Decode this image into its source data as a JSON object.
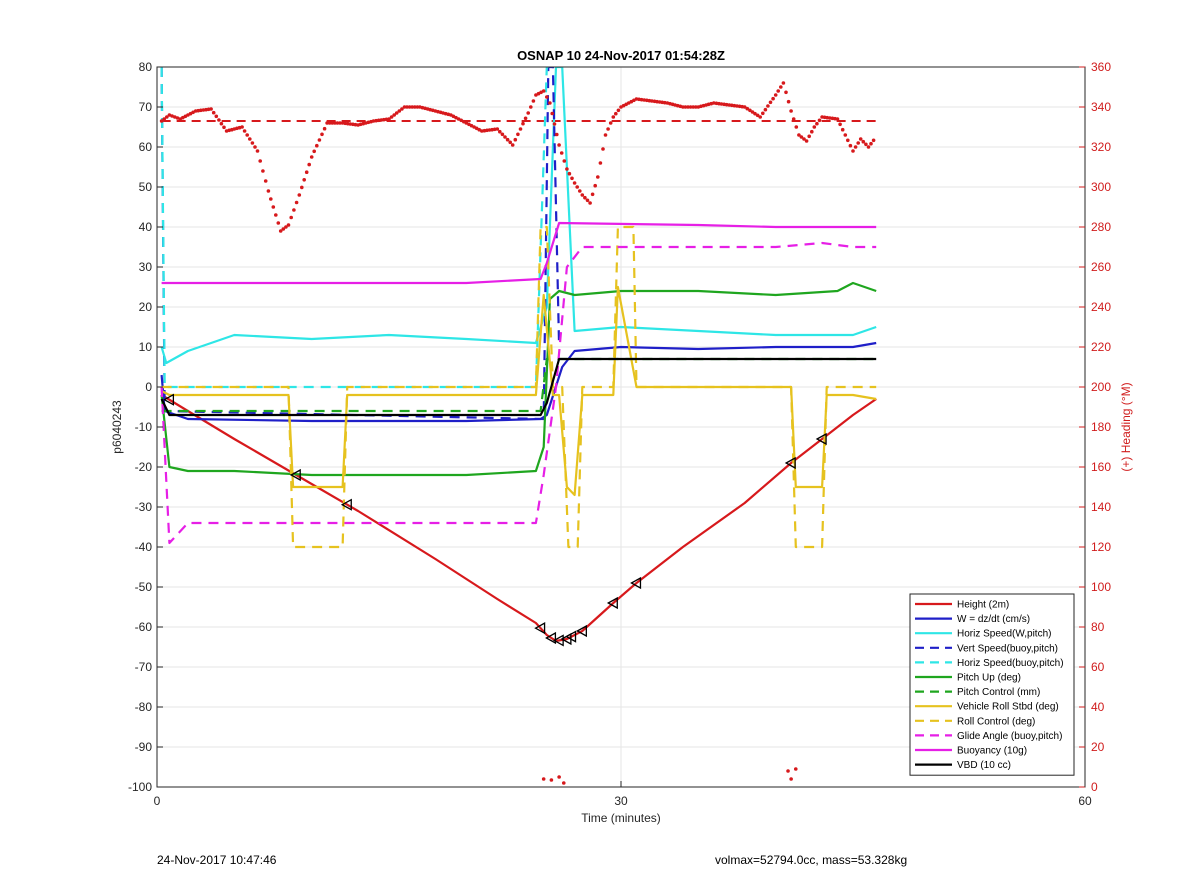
{
  "chart_data": {
    "type": "line",
    "title": "OSNAP 10 24-Nov-2017 01:54:28Z",
    "xlabel": "Time (minutes)",
    "ylabel": "p6040243",
    "y2label": "(+) Heading (°M)",
    "xlim": [
      0,
      60
    ],
    "ylim": [
      -100,
      80
    ],
    "y2lim": [
      0,
      360
    ],
    "x_ticks": [
      "0",
      "30",
      "60"
    ],
    "y_ticks": [
      "80",
      "70",
      "60",
      "50",
      "40",
      "30",
      "20",
      "10",
      "0",
      "-10",
      "-20",
      "-30",
      "-40",
      "-50",
      "-60",
      "-70",
      "-80",
      "-90",
      "-100"
    ],
    "y2_ticks": [
      "360",
      "340",
      "320",
      "300",
      "280",
      "260",
      "240",
      "220",
      "200",
      "180",
      "160",
      "140",
      "120",
      "100",
      "80",
      "60",
      "40",
      "20",
      "0"
    ],
    "grid": true,
    "legend_position": "bottom-right",
    "series": [
      {
        "name": "Height (2m)",
        "color": "#d7191c",
        "style": "solid",
        "x": [
          0.3,
          2,
          5,
          9,
          13,
          18,
          22,
          24.5,
          25.2,
          25.8,
          26.5,
          27.5,
          29.5,
          31,
          34,
          38,
          41,
          43,
          45,
          46.5
        ],
        "y": [
          -2,
          -6,
          -13,
          -22,
          -31,
          -43,
          -53,
          -59,
          -62,
          -63.5,
          -63,
          -61,
          -54,
          -49,
          -40,
          -29,
          -19,
          -13,
          -7,
          -3
        ]
      },
      {
        "name": "W = dz/dt (cm/s)",
        "color": "#1f1fc8",
        "style": "solid",
        "x": [
          0.3,
          0.5,
          2,
          10,
          20,
          24.8,
          25.2,
          26.2,
          27,
          30,
          35,
          40,
          45,
          46.5
        ],
        "y": [
          3,
          -6,
          -8,
          -8.5,
          -8.5,
          -8,
          -7,
          5,
          9,
          10,
          9.5,
          10,
          10,
          11
        ]
      },
      {
        "name": "Horiz Speed(W,pitch)",
        "color": "#2ee6e6",
        "style": "solid",
        "x": [
          0.3,
          0.6,
          2,
          5,
          10,
          15,
          20,
          24.5,
          25.2,
          25.8,
          26.2,
          27,
          30,
          35,
          40,
          45,
          46.5
        ],
        "y": [
          10,
          6,
          9,
          13,
          12,
          13,
          12,
          11,
          20,
          80,
          80,
          14,
          15,
          14,
          13,
          13,
          15
        ]
      },
      {
        "name": "Vert Speed(buoy,pitch)",
        "color": "#1f1fc8",
        "style": "dashed",
        "x": [
          0.3,
          0.5,
          25,
          25.3,
          25.6,
          26
        ],
        "y": [
          80,
          -6,
          -8,
          80,
          80,
          10
        ]
      },
      {
        "name": "Horiz Speed(buoy,pitch)",
        "color": "#2ee6e6",
        "style": "dashed",
        "x": [
          0.3,
          0.5,
          1,
          24.5,
          25.2,
          25.5
        ],
        "y": [
          80,
          0,
          0,
          0,
          80,
          80
        ]
      },
      {
        "name": "Pitch Up (deg)",
        "color": "#1fa61f",
        "style": "solid",
        "x": [
          0.3,
          0.8,
          2,
          5,
          10,
          20,
          24.5,
          25,
          25.4,
          26,
          27,
          30,
          35,
          40,
          44,
          45,
          46.5
        ],
        "y": [
          -2,
          -20,
          -21,
          -21,
          -22,
          -22,
          -21,
          -15,
          22,
          24,
          23,
          24,
          24,
          23,
          24,
          26,
          24
        ]
      },
      {
        "name": "Pitch Control (mm)",
        "color": "#1fa61f",
        "style": "dashed",
        "x": [
          0.3,
          1,
          24.8,
          25.2,
          46.5
        ],
        "y": [
          -6,
          -6,
          -6,
          7,
          7
        ]
      },
      {
        "name": "Vehicle Roll Stbd (deg)",
        "color": "#e6c21f",
        "style": "solid",
        "x": [
          0.3,
          0.8,
          8.5,
          8.8,
          12,
          12.3,
          20,
          24.5,
          25,
          25.6,
          26,
          26.5,
          27,
          27.5,
          28,
          29.5,
          29.8,
          31,
          40,
          41,
          41.3,
          43,
          43.3,
          45,
          46.5
        ],
        "y": [
          -1,
          -2,
          -2,
          -25,
          -25,
          -2,
          -2,
          -2,
          23,
          -2,
          -2,
          -25,
          -27,
          -2,
          -2,
          -2,
          25,
          0,
          0,
          0,
          -25,
          -25,
          -2,
          -2,
          -3
        ]
      },
      {
        "name": "Roll Control (deg)",
        "color": "#e6c21f",
        "style": "dashed",
        "x": [
          0.3,
          8.5,
          8.8,
          12,
          12.3,
          24.5,
          24.8,
          25.2,
          25.6,
          26.2,
          26.6,
          27.2,
          27.5,
          29.5,
          29.8,
          30.8,
          31,
          41,
          41.3,
          43,
          43.3,
          46.5
        ],
        "y": [
          0,
          0,
          -40,
          -40,
          0,
          0,
          40,
          40,
          0,
          0,
          -40,
          -40,
          0,
          0,
          40,
          40,
          0,
          0,
          -40,
          -40,
          0,
          0
        ]
      },
      {
        "name": "Glide Angle (buoy,pitch)",
        "color": "#e61fe6",
        "style": "dashed",
        "x": [
          0.3,
          0.8,
          2,
          5,
          10,
          15,
          20,
          24.5,
          25,
          25.8,
          26.5,
          27.5,
          30,
          35,
          40,
          43,
          45,
          46.5
        ],
        "y": [
          0,
          -39,
          -34,
          -34,
          -34,
          -34,
          -34,
          -34,
          -22,
          0,
          30,
          35,
          35,
          35,
          35,
          36,
          35,
          35
        ]
      },
      {
        "name": "Buoyancy (10g)",
        "color": "#e61fe6",
        "style": "solid",
        "x": [
          0.3,
          13,
          20,
          24.8,
          25.2,
          26,
          35,
          40,
          46.5
        ],
        "y": [
          26,
          26,
          26,
          27,
          31,
          41,
          40.5,
          40,
          40
        ]
      },
      {
        "name": "VBD (10 cc)",
        "color": "#000000",
        "style": "solid",
        "x": [
          0.3,
          0.8,
          24.8,
          25.2,
          26,
          46.5
        ],
        "y": [
          -3,
          -7,
          -7,
          -4,
          7,
          7
        ]
      }
    ],
    "heading_series": {
      "name": "(+) Heading (°M)",
      "color": "#d7191c",
      "style": "dotted",
      "axis": "right",
      "x": [
        0.3,
        0.8,
        1.5,
        2.5,
        3.5,
        4.5,
        5.5,
        6.5,
        7.2,
        8,
        8.5,
        9.2,
        10,
        11,
        12,
        13,
        14,
        15,
        16,
        17,
        18,
        19,
        20,
        21,
        22,
        23,
        24,
        24.5,
        25,
        25.4,
        26,
        26.5,
        27,
        27.5,
        28,
        28.5,
        29,
        29.5,
        30,
        31,
        32,
        33,
        34,
        35,
        36,
        37,
        38,
        39,
        40,
        40.5,
        41,
        41.5,
        42,
        42.5,
        43,
        44,
        45,
        45.5,
        46,
        46.5
      ],
      "y": [
        333,
        336,
        334,
        338,
        339,
        328,
        330,
        318,
        298,
        278,
        281,
        296,
        315,
        332,
        332,
        331,
        333,
        334,
        340,
        340,
        338,
        336,
        332,
        328,
        329,
        321,
        337,
        346,
        348,
        342,
        321,
        309,
        302,
        296,
        292,
        305,
        326,
        335,
        340,
        344,
        343,
        342,
        340,
        340,
        342,
        341,
        340,
        335,
        346,
        352,
        338,
        326,
        323,
        330,
        335,
        334,
        318,
        324,
        320,
        325
      ]
    },
    "legend": [
      "Height (2m)",
      "W = dz/dt (cm/s)",
      "Horiz Speed(W,pitch)",
      "Vert Speed(buoy,pitch)",
      "Horiz Speed(buoy,pitch)",
      "Pitch Up (deg)",
      "Pitch Control (mm)",
      "Vehicle Roll Stbd (deg)",
      "Roll Control (deg)",
      "Glide Angle (buoy,pitch)",
      "Buoyancy (10g)",
      "VBD (10 cc)"
    ]
  },
  "footer": {
    "left": "24-Nov-2017 10:47:46",
    "right": "volmax=52794.0cc, mass=53.328kg"
  }
}
